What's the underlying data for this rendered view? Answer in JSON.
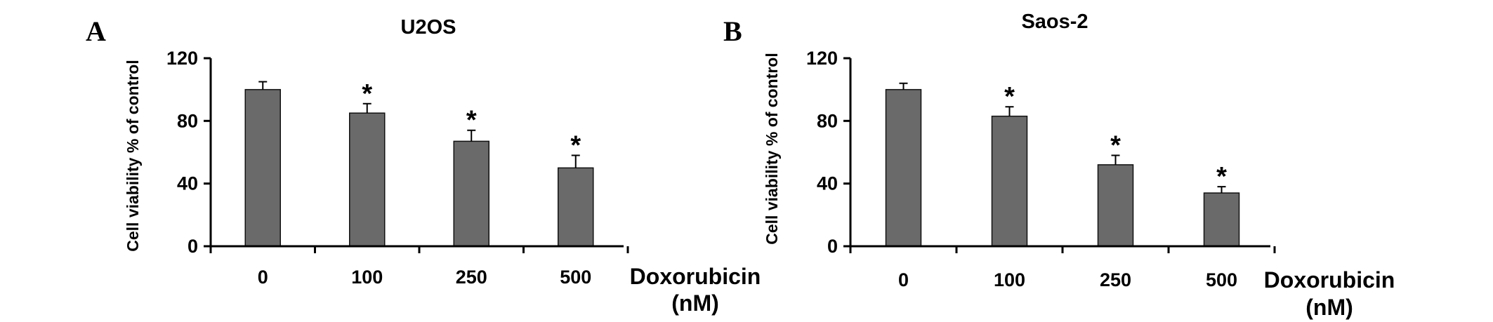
{
  "chart_data": [
    {
      "type": "bar",
      "panel_label": "A",
      "title": "U2OS",
      "ylabel": "Cell viability % of control",
      "xlabel_lines": [
        "Doxorubicin",
        "(nM)"
      ],
      "ylim": [
        0,
        120
      ],
      "yticks": [
        0,
        40,
        80,
        120
      ],
      "categories": [
        "0",
        "100",
        "250",
        "500"
      ],
      "values": [
        100,
        85,
        67,
        50
      ],
      "error_upper": [
        5,
        6,
        7,
        8
      ],
      "annotations": [
        "",
        "*",
        "*",
        "*"
      ],
      "bar_color": "#6a6a6a"
    },
    {
      "type": "bar",
      "panel_label": "B",
      "title": "Saos-2",
      "ylabel": "Cell viability % of control",
      "xlabel_lines": [
        "Doxorubicin",
        "(nM)"
      ],
      "ylim": [
        0,
        120
      ],
      "yticks": [
        0,
        40,
        80,
        120
      ],
      "categories": [
        "0",
        "100",
        "250",
        "500"
      ],
      "values": [
        100,
        83,
        52,
        34
      ],
      "error_upper": [
        4,
        6,
        6,
        4
      ],
      "annotations": [
        "",
        "*",
        "*",
        "*"
      ],
      "bar_color": "#6a6a6a"
    }
  ]
}
